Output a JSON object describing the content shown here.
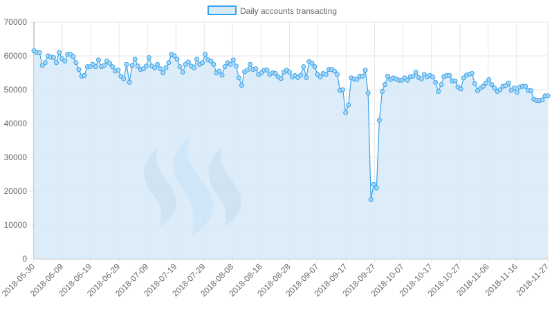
{
  "chart_data": {
    "type": "area",
    "title": "",
    "xlabel": "",
    "ylabel": "",
    "ylim": [
      0,
      70000
    ],
    "y_ticks": [
      0,
      10000,
      20000,
      30000,
      40000,
      50000,
      60000,
      70000
    ],
    "y_tick_labels": [
      "0",
      "10000",
      "20000",
      "30000",
      "40000",
      "50000",
      "60000",
      "70000"
    ],
    "x_tick_labels": [
      "2018-05-30",
      "2018-06-09",
      "2018-06-19",
      "2018-06-29",
      "2018-07-09",
      "2018-07-19",
      "2018-07-29",
      "2018-08-08",
      "2018-08-18",
      "2018-08-28",
      "2018-09-07",
      "2018-09-17",
      "2018-09-27",
      "2018-10-07",
      "2018-10-17",
      "2018-10-27",
      "2018-11-06",
      "2018-11-16",
      "2018-11-27"
    ],
    "grid": true,
    "legend_position": "top-center",
    "x_start": "2018-05-30",
    "x_end": "2018-11-27",
    "colors": {
      "line": "#36a2eb",
      "fill": "#d6eaf8",
      "point_fill": "#a9d6f5",
      "grid": "#e6e6e6",
      "axis": "#999999",
      "tick_text": "#666666"
    },
    "series": [
      {
        "name": "Daily accounts transacting",
        "values": [
          61500,
          61000,
          61000,
          57200,
          58000,
          60000,
          59700,
          59500,
          58000,
          61000,
          59200,
          58500,
          60500,
          60500,
          59800,
          58000,
          56000,
          54000,
          54200,
          56800,
          56800,
          57500,
          56800,
          58800,
          56800,
          57200,
          58500,
          57800,
          56800,
          55500,
          55800,
          54000,
          53200,
          57500,
          52200,
          57200,
          59000,
          57000,
          56000,
          56200,
          57000,
          59500,
          57000,
          56500,
          57500,
          56200,
          55000,
          56500,
          58000,
          60500,
          60000,
          59000,
          56800,
          55200,
          57500,
          58200,
          57000,
          56500,
          59000,
          57500,
          58000,
          60500,
          58800,
          58500,
          57500,
          55000,
          55500,
          54300,
          56800,
          58000,
          57500,
          58800,
          57000,
          53500,
          51300,
          55300,
          55800,
          57500,
          56000,
          56200,
          54500,
          55000,
          55800,
          55800,
          54500,
          55000,
          54800,
          53800,
          53300,
          55200,
          55800,
          55200,
          53800,
          54200,
          53600,
          54300,
          56800,
          53600,
          58300,
          57800,
          56800,
          54500,
          53800,
          54800,
          54500,
          56000,
          56000,
          55500,
          54500,
          49800,
          50000,
          43200,
          45500,
          53500,
          53200,
          53000,
          54000,
          54000,
          55800,
          49000,
          17500,
          22000,
          21000,
          41000,
          49500,
          51500,
          54000,
          53000,
          53500,
          53200,
          52800,
          52800,
          53500,
          52800,
          53800,
          54000,
          55200,
          53600,
          53200,
          54500,
          53800,
          54200,
          53800,
          52200,
          49500,
          51500,
          53900,
          54200,
          54200,
          52600,
          52600,
          50800,
          50200,
          53500,
          54300,
          54600,
          54800,
          51800,
          49700,
          50500,
          51000,
          52000,
          53000,
          51500,
          50500,
          49500,
          50000,
          51000,
          51200,
          52000,
          49800,
          50500,
          49200,
          50800,
          51000,
          51000,
          49800,
          49700,
          47200,
          46800,
          46800,
          47000,
          48200,
          48200
        ]
      }
    ]
  }
}
